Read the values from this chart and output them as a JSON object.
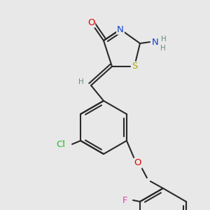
{
  "bg_color": "#e8e8e8",
  "bond_color": "#2a2a2a",
  "bond_width": 1.5,
  "atom_colors": {
    "O": "#dd0000",
    "N": "#1144cc",
    "S": "#aaaa00",
    "Cl": "#22bb22",
    "F": "#dd44aa",
    "H": "#668888",
    "C": "#2a2a2a"
  },
  "font_size": 8.5,
  "fig_size": [
    3.0,
    3.0
  ],
  "dpi": 100
}
